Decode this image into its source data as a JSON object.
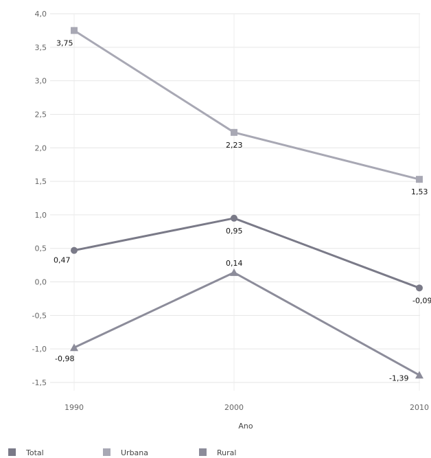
{
  "chart_data": {
    "type": "line",
    "title": "",
    "xlabel": "Ano",
    "ylabel": "",
    "categories": [
      "1990",
      "2000",
      "2010"
    ],
    "ylim": [
      -1.5,
      4.0
    ],
    "yticks": [
      "4,0",
      "3,5",
      "3,0",
      "2,5",
      "2,0",
      "1,5",
      "1,0",
      "0,5",
      "0,0",
      "-0,5",
      "-1,0",
      "-1,5"
    ],
    "grid": true,
    "legend": "bottom",
    "series": [
      {
        "name": "Total",
        "values": [
          0.47,
          0.95,
          -0.09
        ],
        "labels": [
          "0,47",
          "0,95",
          "-0,09"
        ],
        "marker": "circle",
        "color": "#7a7a88"
      },
      {
        "name": "Urbana",
        "values": [
          3.75,
          2.23,
          1.53
        ],
        "labels": [
          "3,75",
          "2,23",
          "1,53"
        ],
        "marker": "square",
        "color": "#a8a8b4"
      },
      {
        "name": "Rural",
        "values": [
          -0.98,
          0.14,
          -1.39
        ],
        "labels": [
          "-0,98",
          "0,14",
          "-1,39"
        ],
        "marker": "triangle",
        "color": "#8c8c9a"
      }
    ]
  }
}
